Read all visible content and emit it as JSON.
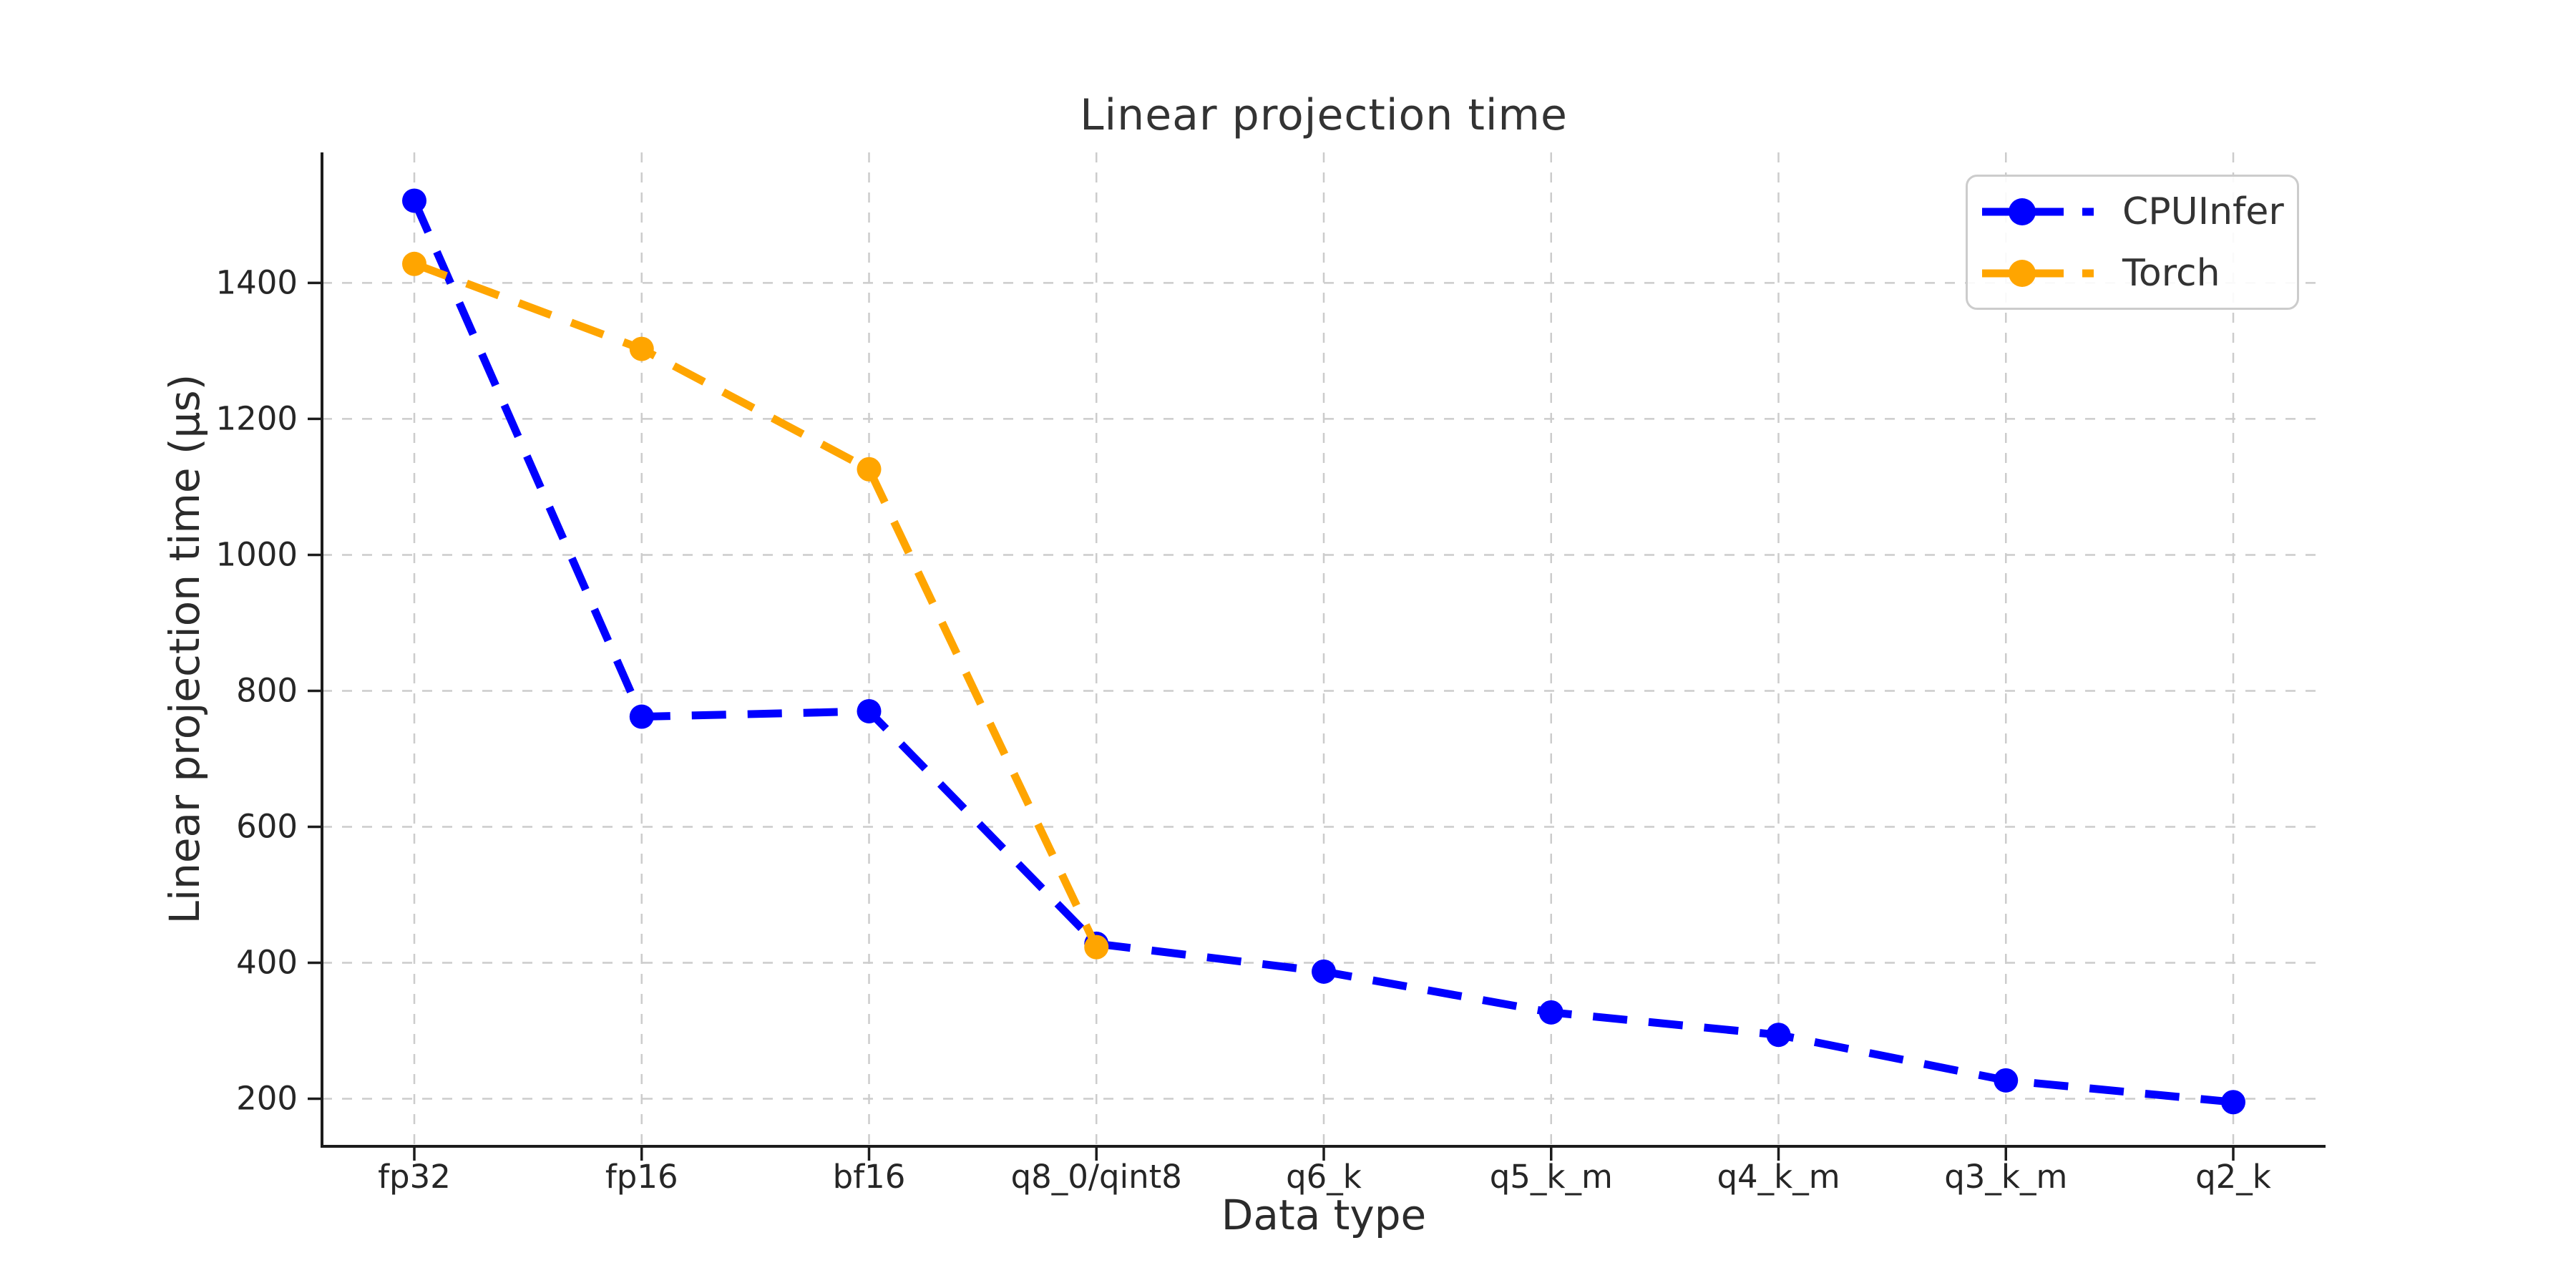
{
  "figure": {
    "background": "#ffffff",
    "text_color": "#2b2b2b",
    "grid_color": "#cccccc",
    "spine_color": "#1c1c1c"
  },
  "chart_data": {
    "type": "line",
    "title": "Linear projection time",
    "xlabel": "Data type",
    "ylabel": "Linear projection time (μs)",
    "categories": [
      "fp32",
      "fp16",
      "bf16",
      "q8_0/qint8",
      "q6_k",
      "q5_k_m",
      "q4_k_m",
      "q3_k_m",
      "q2_k"
    ],
    "series": [
      {
        "name": "CPUInfer",
        "color": "#0000ff",
        "line_style": "dashed",
        "marker": "circle",
        "values": [
          1521,
          762,
          770,
          428,
          387,
          327,
          294,
          227,
          195
        ]
      },
      {
        "name": "Torch",
        "color": "#ffa500",
        "line_style": "dashed",
        "marker": "circle",
        "values": [
          1428,
          1303,
          1126,
          423,
          null,
          null,
          null,
          null,
          null
        ]
      }
    ],
    "y_ticks": [
      200,
      400,
      600,
      800,
      1000,
      1200,
      1400
    ],
    "ylim": [
      130,
      1592
    ],
    "grid": "dashed",
    "legend_position": "upper right",
    "legend_entries": [
      "CPUInfer",
      "Torch"
    ]
  }
}
